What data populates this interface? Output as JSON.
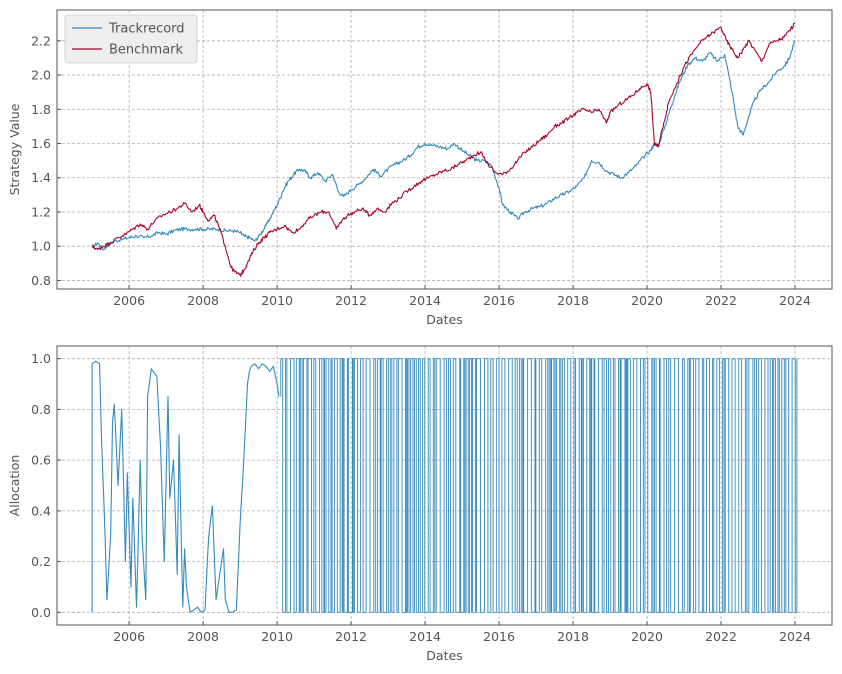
{
  "colors": {
    "trackrecord": "#348abd",
    "benchmark": "#a60628",
    "grid": "#b0b0b0",
    "text": "#555555"
  },
  "chart_data": [
    {
      "type": "line",
      "title": "",
      "xlabel": "Dates",
      "ylabel": "Strategy Value",
      "xlim": [
        2004.05,
        2025.0
      ],
      "ylim": [
        0.75,
        2.38
      ],
      "xticks": [
        2006,
        2008,
        2010,
        2012,
        2014,
        2016,
        2018,
        2020,
        2022,
        2024
      ],
      "xtick_labels": [
        "2006",
        "2008",
        "2010",
        "2012",
        "2014",
        "2016",
        "2018",
        "2020",
        "2022",
        "2024"
      ],
      "yticks": [
        0.8,
        1.0,
        1.2,
        1.4,
        1.6,
        1.8,
        2.0,
        2.2
      ],
      "ytick_labels": [
        "0.8",
        "1.0",
        "1.2",
        "1.4",
        "1.6",
        "1.8",
        "2.0",
        "2.2"
      ],
      "grid": true,
      "legend": "top-left",
      "series": [
        {
          "name": "Trackrecord",
          "color": "#348abd",
          "x": [
            2005.0,
            2005.15,
            2005.3,
            2005.45,
            2005.6,
            2005.8,
            2006.0,
            2006.2,
            2006.4,
            2006.6,
            2006.8,
            2007.0,
            2007.2,
            2007.4,
            2007.6,
            2007.8,
            2008.0,
            2008.2,
            2008.4,
            2008.6,
            2008.8,
            2009.0,
            2009.1,
            2009.25,
            2009.4,
            2009.55,
            2009.7,
            2009.85,
            2010.0,
            2010.15,
            2010.3,
            2010.45,
            2010.6,
            2010.75,
            2010.9,
            2011.1,
            2011.3,
            2011.5,
            2011.65,
            2011.8,
            2012.0,
            2012.2,
            2012.4,
            2012.6,
            2012.8,
            2013.0,
            2013.2,
            2013.4,
            2013.6,
            2013.8,
            2014.0,
            2014.2,
            2014.4,
            2014.6,
            2014.8,
            2015.0,
            2015.2,
            2015.4,
            2015.6,
            2015.8,
            2016.0,
            2016.1,
            2016.3,
            2016.5,
            2016.7,
            2016.9,
            2017.1,
            2017.3,
            2017.5,
            2017.7,
            2017.9,
            2018.1,
            2018.3,
            2018.5,
            2018.7,
            2018.9,
            2019.1,
            2019.3,
            2019.5,
            2019.7,
            2019.9,
            2020.1,
            2020.2,
            2020.3,
            2020.45,
            2020.6,
            2020.75,
            2020.9,
            2021.1,
            2021.3,
            2021.5,
            2021.7,
            2021.9,
            2022.1,
            2022.3,
            2022.45,
            2022.6,
            2022.75,
            2022.9,
            2023.1,
            2023.3,
            2023.5,
            2023.7,
            2023.85,
            2024.0
          ],
          "y": [
            0.99,
            1.02,
            0.98,
            1.01,
            1.03,
            1.04,
            1.05,
            1.06,
            1.05,
            1.06,
            1.08,
            1.07,
            1.09,
            1.1,
            1.1,
            1.1,
            1.1,
            1.1,
            1.1,
            1.09,
            1.09,
            1.08,
            1.06,
            1.05,
            1.03,
            1.07,
            1.12,
            1.18,
            1.24,
            1.32,
            1.38,
            1.42,
            1.45,
            1.44,
            1.4,
            1.43,
            1.38,
            1.42,
            1.32,
            1.29,
            1.33,
            1.36,
            1.4,
            1.45,
            1.41,
            1.45,
            1.48,
            1.5,
            1.53,
            1.58,
            1.6,
            1.59,
            1.58,
            1.57,
            1.6,
            1.56,
            1.53,
            1.5,
            1.5,
            1.47,
            1.34,
            1.24,
            1.2,
            1.16,
            1.2,
            1.22,
            1.23,
            1.25,
            1.28,
            1.3,
            1.32,
            1.35,
            1.4,
            1.5,
            1.49,
            1.44,
            1.42,
            1.4,
            1.43,
            1.47,
            1.52,
            1.56,
            1.6,
            1.58,
            1.68,
            1.78,
            1.88,
            1.97,
            2.06,
            2.1,
            2.08,
            2.13,
            2.08,
            2.12,
            1.9,
            1.7,
            1.65,
            1.76,
            1.85,
            1.92,
            1.96,
            2.02,
            2.05,
            2.1,
            2.2
          ]
        },
        {
          "name": "Benchmark",
          "color": "#a60628",
          "x": [
            2005.0,
            2005.15,
            2005.3,
            2005.5,
            2005.7,
            2005.9,
            2006.1,
            2006.3,
            2006.5,
            2006.7,
            2006.9,
            2007.1,
            2007.3,
            2007.5,
            2007.7,
            2007.9,
            2008.0,
            2008.15,
            2008.3,
            2008.45,
            2008.6,
            2008.75,
            2008.85,
            2009.0,
            2009.1,
            2009.2,
            2009.35,
            2009.5,
            2009.65,
            2009.8,
            2010.0,
            2010.2,
            2010.4,
            2010.6,
            2010.8,
            2011.0,
            2011.2,
            2011.4,
            2011.6,
            2011.75,
            2011.9,
            2012.1,
            2012.3,
            2012.5,
            2012.7,
            2012.9,
            2013.1,
            2013.3,
            2013.5,
            2013.7,
            2013.9,
            2014.1,
            2014.3,
            2014.5,
            2014.7,
            2014.9,
            2015.1,
            2015.3,
            2015.5,
            2015.7,
            2015.9,
            2016.1,
            2016.3,
            2016.5,
            2016.7,
            2016.9,
            2017.1,
            2017.3,
            2017.5,
            2017.7,
            2017.9,
            2018.1,
            2018.3,
            2018.5,
            2018.7,
            2018.9,
            2019.0,
            2019.2,
            2019.4,
            2019.6,
            2019.8,
            2020.0,
            2020.1,
            2020.2,
            2020.3,
            2020.45,
            2020.6,
            2020.8,
            2021.0,
            2021.2,
            2021.4,
            2021.6,
            2021.8,
            2022.0,
            2022.15,
            2022.3,
            2022.45,
            2022.6,
            2022.75,
            2022.9,
            2023.1,
            2023.3,
            2023.5,
            2023.7,
            2023.85,
            2024.0
          ],
          "y": [
            1.0,
            0.98,
            1.0,
            1.02,
            1.05,
            1.07,
            1.1,
            1.13,
            1.1,
            1.15,
            1.18,
            1.2,
            1.22,
            1.25,
            1.2,
            1.24,
            1.2,
            1.15,
            1.18,
            1.1,
            1.0,
            0.88,
            0.85,
            0.83,
            0.86,
            0.9,
            0.97,
            1.02,
            1.05,
            1.08,
            1.1,
            1.12,
            1.08,
            1.1,
            1.15,
            1.18,
            1.2,
            1.2,
            1.1,
            1.15,
            1.18,
            1.2,
            1.22,
            1.18,
            1.22,
            1.2,
            1.25,
            1.28,
            1.32,
            1.35,
            1.38,
            1.4,
            1.42,
            1.44,
            1.45,
            1.48,
            1.5,
            1.53,
            1.55,
            1.48,
            1.43,
            1.42,
            1.45,
            1.5,
            1.55,
            1.58,
            1.62,
            1.65,
            1.7,
            1.72,
            1.75,
            1.78,
            1.8,
            1.78,
            1.8,
            1.72,
            1.78,
            1.82,
            1.85,
            1.88,
            1.92,
            1.95,
            1.9,
            1.6,
            1.58,
            1.72,
            1.85,
            1.95,
            2.05,
            2.12,
            2.18,
            2.22,
            2.25,
            2.28,
            2.2,
            2.15,
            2.1,
            2.15,
            2.2,
            2.15,
            2.08,
            2.18,
            2.2,
            2.22,
            2.26,
            2.3
          ]
        }
      ]
    },
    {
      "type": "line",
      "title": "",
      "xlabel": "Dates",
      "ylabel": "Allocation",
      "xlim": [
        2004.05,
        2025.0
      ],
      "ylim": [
        -0.05,
        1.05
      ],
      "xticks": [
        2006,
        2008,
        2010,
        2012,
        2014,
        2016,
        2018,
        2020,
        2022,
        2024
      ],
      "xtick_labels": [
        "2006",
        "2008",
        "2010",
        "2012",
        "2014",
        "2016",
        "2018",
        "2020",
        "2022",
        "2024"
      ],
      "yticks": [
        0.0,
        0.2,
        0.4,
        0.6,
        0.8,
        1.0
      ],
      "ytick_labels": [
        "0.0",
        "0.2",
        "0.4",
        "0.6",
        "0.8",
        "1.0"
      ],
      "grid": true,
      "binary_switching": {
        "from": 2010.1,
        "to": 2024.05,
        "values": [
          0,
          1
        ]
      },
      "series": [
        {
          "name": "",
          "color": "#348abd",
          "x": [
            2005.0,
            2005.0,
            2005.1,
            2005.2,
            2005.25,
            2005.35,
            2005.4,
            2005.5,
            2005.55,
            2005.6,
            2005.7,
            2005.8,
            2005.9,
            2005.95,
            2006.05,
            2006.1,
            2006.2,
            2006.3,
            2006.35,
            2006.45,
            2006.5,
            2006.6,
            2006.75,
            2006.85,
            2006.95,
            2007.05,
            2007.1,
            2007.2,
            2007.3,
            2007.35,
            2007.45,
            2007.5,
            2007.55,
            2007.65,
            2007.75,
            2007.85,
            2007.95,
            2008.05,
            2008.15,
            2008.25,
            2008.35,
            2008.45,
            2008.55,
            2008.6,
            2008.7,
            2008.8,
            2008.9,
            2009.0,
            2009.1,
            2009.2,
            2009.25,
            2009.3,
            2009.4,
            2009.5,
            2009.6,
            2009.7,
            2009.8,
            2009.9,
            2010.0,
            2010.05
          ],
          "y": [
            0.0,
            0.98,
            0.99,
            0.98,
            0.7,
            0.3,
            0.05,
            0.3,
            0.75,
            0.82,
            0.5,
            0.8,
            0.2,
            0.55,
            0.1,
            0.45,
            0.02,
            0.6,
            0.3,
            0.05,
            0.85,
            0.96,
            0.93,
            0.65,
            0.2,
            0.85,
            0.45,
            0.6,
            0.15,
            0.7,
            0.02,
            0.25,
            0.1,
            0.0,
            0.01,
            0.02,
            0.0,
            0.01,
            0.3,
            0.42,
            0.05,
            0.15,
            0.25,
            0.05,
            0.0,
            0.0,
            0.01,
            0.35,
            0.6,
            0.9,
            0.95,
            0.97,
            0.98,
            0.96,
            0.98,
            0.97,
            0.95,
            0.97,
            0.9,
            0.85
          ]
        }
      ]
    }
  ]
}
